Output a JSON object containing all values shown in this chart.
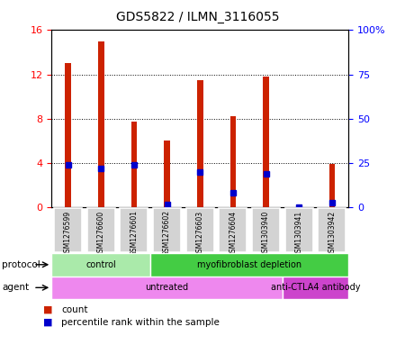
{
  "title": "GDS5822 / ILMN_3116055",
  "samples": [
    "GSM1276599",
    "GSM1276600",
    "GSM1276601",
    "GSM1276602",
    "GSM1276603",
    "GSM1276604",
    "GSM1303940",
    "GSM1303941",
    "GSM1303942"
  ],
  "counts": [
    13.0,
    15.0,
    7.7,
    6.0,
    11.5,
    8.2,
    11.8,
    0.05,
    3.9
  ],
  "percentile_ranks": [
    24.0,
    22.0,
    24.0,
    1.5,
    20.0,
    8.0,
    19.0,
    0.05,
    2.5
  ],
  "ylim_left": [
    0,
    16
  ],
  "ylim_right": [
    0,
    100
  ],
  "yticks_left": [
    0,
    4,
    8,
    12,
    16
  ],
  "ytick_labels_left": [
    "0",
    "4",
    "8",
    "12",
    "16"
  ],
  "ytick_labels_right": [
    "0",
    "25",
    "50",
    "75",
    "100%"
  ],
  "protocol_groups": [
    {
      "label": "control",
      "start": 0,
      "end": 3,
      "color": "#aaeaaa"
    },
    {
      "label": "myofibroblast depletion",
      "start": 3,
      "end": 9,
      "color": "#44cc44"
    }
  ],
  "agent_groups": [
    {
      "label": "untreated",
      "start": 0,
      "end": 7,
      "color": "#ee88ee"
    },
    {
      "label": "anti-CTLA4 antibody",
      "start": 7,
      "end": 9,
      "color": "#cc44cc"
    }
  ],
  "bar_color": "#cc2200",
  "percentile_color": "#0000cc",
  "legend_count_color": "#cc2200",
  "legend_percentile_color": "#0000cc"
}
